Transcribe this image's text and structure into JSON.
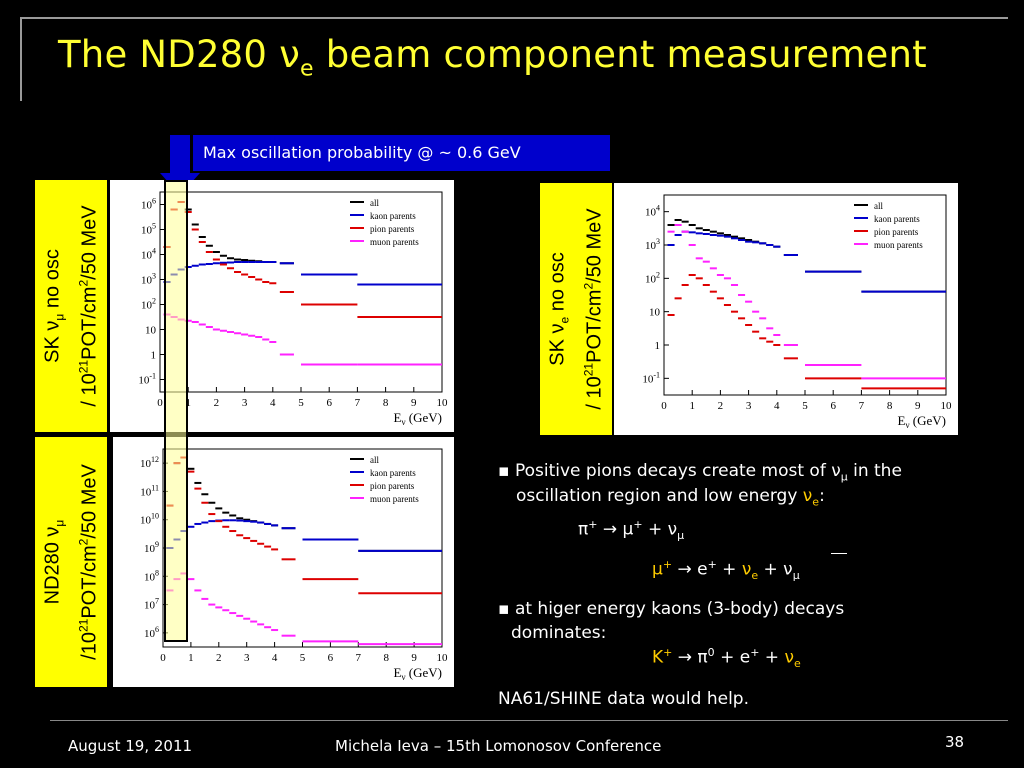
{
  "slide": {
    "title_pre": "The ND280 ν",
    "title_sub": "e",
    "title_post": " beam component measurement",
    "callout": "Max oscillation probability @ ~ 0.6 GeV",
    "footer_date": "August 19, 2011",
    "footer_author": "Michela Ieva – 15th Lomonosov Conference",
    "slide_number": "38",
    "colors": {
      "title": "#ffff33",
      "callout_bg": "#0000cc",
      "ylabel_bg": "#ffff00",
      "highlight": "#ffcc00"
    }
  },
  "ylabels": {
    "sk_mu": {
      "l1a": "SK ν",
      "l1sub": "μ",
      "l1b": " no osc",
      "l2a": "/ 10",
      "l2sup": "21",
      "l2b": "POT/cm",
      "l2sup2": "2",
      "l2c": "/50 MeV"
    },
    "sk_e": {
      "l1a": "SK ν",
      "l1sub": "e",
      "l1b": " no osc",
      "l2a": "/ 10",
      "l2sup": "21",
      "l2b": "POT/cm",
      "l2sup2": "2",
      "l2c": "/50 MeV"
    },
    "nd_mu": {
      "l1a": "ND280 ν",
      "l1sub": "μ",
      "l2a": "/10",
      "l2sup": "21",
      "l2b": "POT/cm",
      "l2sup2": "2",
      "l2c": "/50 MeV"
    }
  },
  "bullets": {
    "b1_line1_pre": "Positive pions decays create most of ν",
    "b1_line1_sub": "μ",
    "b1_line1_post": "  in the",
    "b1_line2_pre": "oscillation region and low energy ",
    "b1_line2_nu": "ν",
    "b1_line2_sub": "e",
    "b1_line2_post": ":",
    "eq1_a": "π",
    "eq1_a_sup": "+",
    "eq1_b": " → μ",
    "eq1_b_sup": "+",
    "eq1_c": " + ν",
    "eq1_c_sub": "μ",
    "eq2_a": "μ",
    "eq2_a_sup": "+",
    "eq2_b": " → e",
    "eq2_b_sup": "+",
    "eq2_c": " + ",
    "eq2_d": "ν",
    "eq2_d_sub": "e",
    "eq2_e": " + ν",
    "eq2_e_sub": "μ",
    "b2_line1": "at higer energy kaons (3-body) decays",
    "b2_line2": "dominates:",
    "eq3_a": "K",
    "eq3_a_sup": "+",
    "eq3_b": " → π",
    "eq3_b_sup": "0",
    "eq3_c": " + e",
    "eq3_c_sup": "+",
    "eq3_d": " + ",
    "eq3_e": "ν",
    "eq3_e_sub": "e",
    "na61": "NA61/SHINE data would help."
  },
  "chart_data": [
    {
      "type": "scatter",
      "id": "sk_numu",
      "xlabel": "E_ν (GeV)",
      "xlim": [
        0,
        10
      ],
      "ylim_log10": [
        -1.5,
        6.5
      ],
      "x_ticks": [
        "0",
        "1",
        "2",
        "3",
        "4",
        "5",
        "6",
        "7",
        "8",
        "9",
        "10"
      ],
      "y_ticks": [
        "10^-1",
        "1",
        "10",
        "10^2",
        "10^3",
        "10^4",
        "10^5",
        "10^6"
      ],
      "legend": [
        "all",
        "kaon parents",
        "pion parents",
        "muon parents"
      ],
      "series": [
        {
          "name": "all",
          "color": "#000000",
          "x": [
            0.25,
            0.5,
            0.75,
            1.0,
            1.25,
            1.5,
            1.75,
            2.0,
            2.25,
            2.5,
            2.75,
            3.0,
            3.25,
            3.5,
            3.75,
            4.0,
            4.5,
            6.0,
            8.5
          ],
          "y_log10": [
            4.3,
            5.8,
            6.1,
            5.8,
            5.2,
            4.7,
            4.35,
            4.1,
            3.95,
            3.85,
            3.8,
            3.78,
            3.75,
            3.73,
            3.7,
            3.7,
            3.65,
            3.2,
            2.8
          ]
        },
        {
          "name": "kaon parents",
          "color": "#0000cc",
          "x": [
            0.25,
            0.5,
            0.75,
            1.0,
            1.25,
            1.5,
            1.75,
            2.0,
            2.25,
            2.5,
            2.75,
            3.0,
            3.25,
            3.5,
            3.75,
            4.0,
            4.5,
            6.0,
            8.5
          ],
          "y_log10": [
            2.9,
            3.2,
            3.4,
            3.5,
            3.55,
            3.6,
            3.62,
            3.65,
            3.67,
            3.68,
            3.7,
            3.7,
            3.7,
            3.7,
            3.7,
            3.7,
            3.65,
            3.2,
            2.8
          ]
        },
        {
          "name": "pion parents",
          "color": "#dd0000",
          "x": [
            0.25,
            0.5,
            0.75,
            1.0,
            1.25,
            1.5,
            1.75,
            2.0,
            2.25,
            2.5,
            2.75,
            3.0,
            3.25,
            3.5,
            3.75,
            4.0,
            4.5,
            6.0,
            8.5
          ],
          "y_log10": [
            4.3,
            5.8,
            6.1,
            5.7,
            5.0,
            4.5,
            4.1,
            3.8,
            3.6,
            3.45,
            3.3,
            3.2,
            3.1,
            3.0,
            2.9,
            2.85,
            2.5,
            2.0,
            1.5
          ]
        },
        {
          "name": "muon parents",
          "color": "#ff22ff",
          "x": [
            0.25,
            0.5,
            0.75,
            1.0,
            1.25,
            1.5,
            1.75,
            2.0,
            2.25,
            2.5,
            2.75,
            3.0,
            3.25,
            3.5,
            3.75,
            4.0,
            4.5,
            6.0,
            8.5
          ],
          "y_log10": [
            1.6,
            1.5,
            1.4,
            1.35,
            1.3,
            1.2,
            1.1,
            1.0,
            0.95,
            0.9,
            0.85,
            0.8,
            0.75,
            0.7,
            0.6,
            0.5,
            0.0,
            -0.4,
            -0.4
          ]
        }
      ]
    },
    {
      "type": "scatter",
      "id": "sk_nue",
      "xlabel": "E_ν (GeV)",
      "xlim": [
        0,
        10
      ],
      "ylim_log10": [
        -1.5,
        4.5
      ],
      "x_ticks": [
        "0",
        "1",
        "2",
        "3",
        "4",
        "5",
        "6",
        "7",
        "8",
        "9",
        "10"
      ],
      "y_ticks": [
        "10^-1",
        "1",
        "10",
        "10^2",
        "10^3",
        "10^4"
      ],
      "legend": [
        "all",
        "kaon parents",
        "pion parents",
        "muon parents"
      ],
      "series": [
        {
          "name": "all",
          "color": "#000000",
          "x": [
            0.25,
            0.5,
            0.75,
            1.0,
            1.25,
            1.5,
            1.75,
            2.0,
            2.25,
            2.5,
            2.75,
            3.0,
            3.25,
            3.5,
            3.75,
            4.0,
            4.5,
            6.0,
            8.5
          ],
          "y_log10": [
            3.6,
            3.75,
            3.7,
            3.6,
            3.5,
            3.45,
            3.4,
            3.35,
            3.3,
            3.25,
            3.2,
            3.15,
            3.1,
            3.05,
            3.0,
            2.95,
            2.7,
            2.2,
            1.6
          ]
        },
        {
          "name": "kaon parents",
          "color": "#0000cc",
          "x": [
            0.25,
            0.5,
            0.75,
            1.0,
            1.25,
            1.5,
            1.75,
            2.0,
            2.25,
            2.5,
            2.75,
            3.0,
            3.25,
            3.5,
            3.75,
            4.0,
            4.5,
            6.0,
            8.5
          ],
          "y_log10": [
            3.0,
            3.3,
            3.4,
            3.38,
            3.35,
            3.33,
            3.3,
            3.28,
            3.25,
            3.2,
            3.15,
            3.1,
            3.08,
            3.05,
            3.0,
            2.95,
            2.7,
            2.2,
            1.6
          ]
        },
        {
          "name": "pion parents",
          "color": "#dd0000",
          "x": [
            0.25,
            0.5,
            0.75,
            1.0,
            1.25,
            1.5,
            1.75,
            2.0,
            2.25,
            2.5,
            2.75,
            3.0,
            3.25,
            3.5,
            3.75,
            4.0,
            4.5,
            6.0,
            8.5
          ],
          "y_log10": [
            0.9,
            1.4,
            1.8,
            2.1,
            2.0,
            1.8,
            1.6,
            1.4,
            1.2,
            1.0,
            0.8,
            0.6,
            0.4,
            0.2,
            0.1,
            0.0,
            -0.4,
            -1.0,
            -1.3
          ]
        },
        {
          "name": "muon parents",
          "color": "#ff22ff",
          "x": [
            0.25,
            0.5,
            0.75,
            1.0,
            1.25,
            1.5,
            1.75,
            2.0,
            2.25,
            2.5,
            2.75,
            3.0,
            3.25,
            3.5,
            3.75,
            4.0,
            4.5,
            6.0,
            8.5
          ],
          "y_log10": [
            3.4,
            3.6,
            3.4,
            3.0,
            2.6,
            2.5,
            2.3,
            2.1,
            2.0,
            1.8,
            1.5,
            1.3,
            1.0,
            0.8,
            0.5,
            0.3,
            0.0,
            -0.6,
            -1.0
          ]
        }
      ]
    },
    {
      "type": "scatter",
      "id": "nd280_numu",
      "xlabel": "E_ν (GeV)",
      "xlim": [
        0,
        10
      ],
      "ylim_log10": [
        5.5,
        12.5
      ],
      "x_ticks": [
        "0",
        "1",
        "2",
        "3",
        "4",
        "5",
        "6",
        "7",
        "8",
        "9",
        "10"
      ],
      "y_ticks": [
        "10^6",
        "10^7",
        "10^8",
        "10^9",
        "10^10",
        "10^11",
        "10^12"
      ],
      "legend": [
        "all",
        "kaon parents",
        "pion parents",
        "muon parents"
      ],
      "series": [
        {
          "name": "all",
          "color": "#000000",
          "x": [
            0.25,
            0.5,
            0.75,
            1.0,
            1.25,
            1.5,
            1.75,
            2.0,
            2.25,
            2.5,
            2.75,
            3.0,
            3.25,
            3.5,
            3.75,
            4.0,
            4.5,
            6.0,
            8.5
          ],
          "y_log10": [
            10.5,
            12.0,
            12.2,
            11.8,
            11.3,
            10.9,
            10.6,
            10.4,
            10.25,
            10.15,
            10.05,
            10.0,
            9.95,
            9.9,
            9.85,
            9.8,
            9.7,
            9.3,
            8.9
          ]
        },
        {
          "name": "kaon parents",
          "color": "#0000cc",
          "x": [
            0.25,
            0.5,
            0.75,
            1.0,
            1.25,
            1.5,
            1.75,
            2.0,
            2.25,
            2.5,
            2.75,
            3.0,
            3.25,
            3.5,
            3.75,
            4.0,
            4.5,
            6.0,
            8.5
          ],
          "y_log10": [
            9.0,
            9.3,
            9.6,
            9.75,
            9.85,
            9.9,
            9.95,
            9.97,
            9.98,
            9.98,
            9.97,
            9.95,
            9.93,
            9.9,
            9.85,
            9.8,
            9.7,
            9.3,
            8.9
          ]
        },
        {
          "name": "pion parents",
          "color": "#dd0000",
          "x": [
            0.25,
            0.5,
            0.75,
            1.0,
            1.25,
            1.5,
            1.75,
            2.0,
            2.25,
            2.5,
            2.75,
            3.0,
            3.25,
            3.5,
            3.75,
            4.0,
            4.5,
            6.0,
            8.5
          ],
          "y_log10": [
            10.5,
            12.0,
            12.2,
            11.7,
            11.1,
            10.6,
            10.2,
            9.95,
            9.75,
            9.6,
            9.45,
            9.35,
            9.25,
            9.15,
            9.05,
            8.95,
            8.6,
            7.9,
            7.4
          ]
        },
        {
          "name": "muon parents",
          "color": "#ff22ff",
          "x": [
            0.25,
            0.5,
            0.75,
            1.0,
            1.25,
            1.5,
            1.75,
            2.0,
            2.25,
            2.5,
            2.75,
            3.0,
            3.25,
            3.5,
            3.75,
            4.0,
            4.5,
            6.0,
            8.5
          ],
          "y_log10": [
            7.5,
            7.9,
            8.1,
            7.9,
            7.5,
            7.2,
            7.0,
            6.9,
            6.8,
            6.7,
            6.6,
            6.5,
            6.4,
            6.3,
            6.2,
            6.1,
            5.9,
            5.7,
            5.6
          ]
        }
      ]
    }
  ]
}
